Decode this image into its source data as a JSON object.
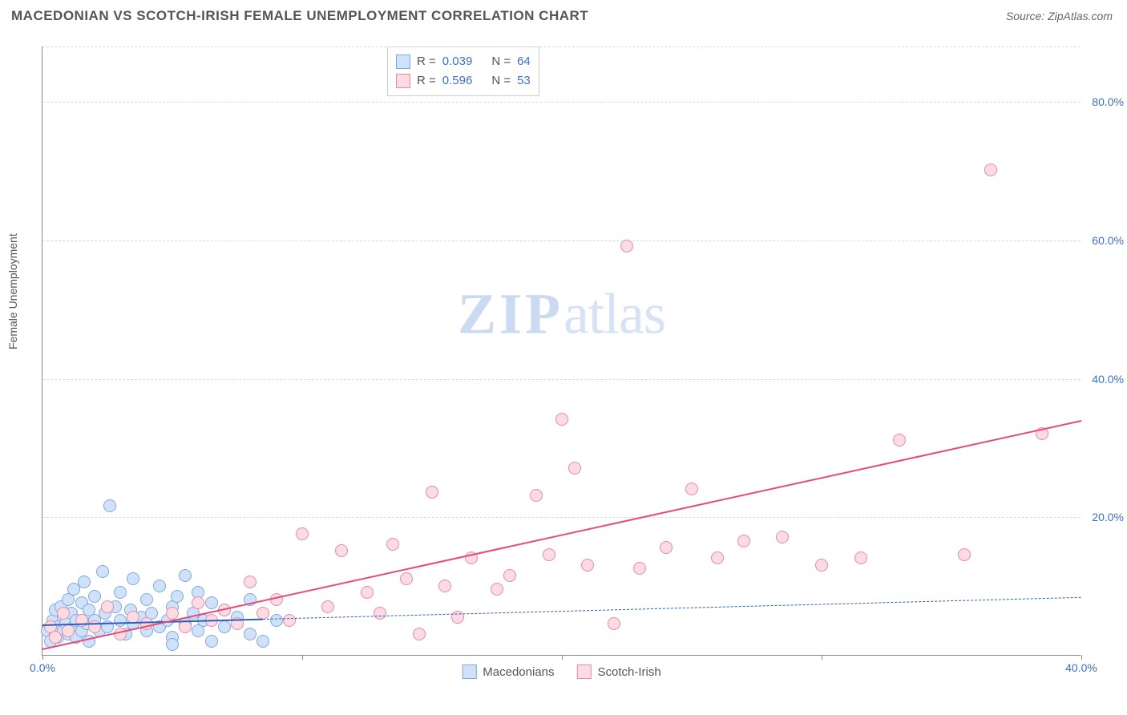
{
  "title": "MACEDONIAN VS SCOTCH-IRISH FEMALE UNEMPLOYMENT CORRELATION CHART",
  "source_label": "Source: ",
  "source_value": "ZipAtlas.com",
  "ylabel": "Female Unemployment",
  "watermark_main": "ZIP",
  "watermark_sub": "atlas",
  "chart": {
    "type": "scatter",
    "xlim": [
      0,
      40
    ],
    "ylim": [
      0,
      88
    ],
    "xtick_values": [
      0,
      10,
      20,
      30,
      40
    ],
    "xtick_labels": [
      "0.0%",
      "",
      "",
      "",
      "40.0%"
    ],
    "ytick_values": [
      20,
      40,
      60,
      80
    ],
    "ytick_labels": [
      "20.0%",
      "40.0%",
      "60.0%",
      "80.0%"
    ],
    "grid_y": [
      20,
      40,
      60,
      80,
      88
    ],
    "grid_color": "#d9d9d9",
    "background_color": "#ffffff",
    "axis_color": "#888888",
    "tick_label_color": "#3b6fd6",
    "series": [
      {
        "name": "Macedonians",
        "marker_color_fill": "#cfe2f9",
        "marker_color_stroke": "#7fa8e0",
        "marker_radius": 8,
        "trend_color": "#2b5fc0",
        "trend_style": "solid_then_dashed",
        "trend_x_solid_end": 8.5,
        "trend_y_start": 4.5,
        "trend_y_end": 8.5,
        "r_value": "0.039",
        "n_value": "64",
        "points": [
          [
            0.2,
            3.5
          ],
          [
            0.3,
            2.0
          ],
          [
            0.4,
            5.0
          ],
          [
            0.5,
            3.0
          ],
          [
            0.5,
            6.5
          ],
          [
            0.6,
            4.0
          ],
          [
            0.6,
            2.5
          ],
          [
            0.7,
            7.0
          ],
          [
            0.8,
            3.5
          ],
          [
            0.8,
            5.5
          ],
          [
            0.9,
            4.5
          ],
          [
            1.0,
            8.0
          ],
          [
            1.0,
            3.0
          ],
          [
            1.1,
            6.0
          ],
          [
            1.2,
            4.0
          ],
          [
            1.2,
            9.5
          ],
          [
            1.3,
            5.0
          ],
          [
            1.3,
            2.5
          ],
          [
            1.5,
            7.5
          ],
          [
            1.5,
            3.5
          ],
          [
            1.6,
            10.5
          ],
          [
            1.7,
            4.5
          ],
          [
            1.8,
            6.5
          ],
          [
            1.8,
            2.0
          ],
          [
            2.0,
            8.5
          ],
          [
            2.0,
            5.0
          ],
          [
            2.2,
            3.5
          ],
          [
            2.3,
            12.0
          ],
          [
            2.4,
            6.0
          ],
          [
            2.5,
            4.0
          ],
          [
            2.6,
            21.5
          ],
          [
            2.8,
            7.0
          ],
          [
            3.0,
            5.0
          ],
          [
            3.0,
            9.0
          ],
          [
            3.2,
            3.0
          ],
          [
            3.4,
            6.5
          ],
          [
            3.5,
            4.5
          ],
          [
            3.5,
            11.0
          ],
          [
            3.8,
            5.5
          ],
          [
            4.0,
            8.0
          ],
          [
            4.0,
            3.5
          ],
          [
            4.2,
            6.0
          ],
          [
            4.5,
            4.0
          ],
          [
            4.5,
            10.0
          ],
          [
            4.8,
            5.0
          ],
          [
            5.0,
            7.0
          ],
          [
            5.0,
            2.5
          ],
          [
            5.0,
            1.5
          ],
          [
            5.2,
            8.5
          ],
          [
            5.5,
            4.5
          ],
          [
            5.5,
            11.5
          ],
          [
            5.8,
            6.0
          ],
          [
            6.0,
            3.5
          ],
          [
            6.0,
            9.0
          ],
          [
            6.2,
            5.0
          ],
          [
            6.5,
            7.5
          ],
          [
            6.5,
            2.0
          ],
          [
            7.0,
            4.0
          ],
          [
            7.0,
            6.5
          ],
          [
            7.5,
            5.5
          ],
          [
            8.0,
            3.0
          ],
          [
            8.0,
            8.0
          ],
          [
            8.5,
            2.0
          ],
          [
            9.0,
            5.0
          ]
        ]
      },
      {
        "name": "Scotch-Irish",
        "marker_color_fill": "#fddbe3",
        "marker_color_stroke": "#e88ba5",
        "marker_radius": 8,
        "trend_color": "#e84a7a",
        "trend_style": "solid",
        "trend_y_start": 1.0,
        "trend_y_end": 34.0,
        "r_value": "0.596",
        "n_value": "53",
        "points": [
          [
            0.3,
            4.0
          ],
          [
            0.5,
            2.5
          ],
          [
            0.8,
            6.0
          ],
          [
            1.0,
            3.5
          ],
          [
            1.5,
            5.0
          ],
          [
            2.0,
            4.0
          ],
          [
            2.5,
            7.0
          ],
          [
            3.0,
            3.0
          ],
          [
            3.5,
            5.5
          ],
          [
            4.0,
            4.5
          ],
          [
            5.0,
            6.0
          ],
          [
            5.5,
            4.0
          ],
          [
            6.0,
            7.5
          ],
          [
            6.5,
            5.0
          ],
          [
            7.0,
            6.5
          ],
          [
            7.5,
            4.5
          ],
          [
            8.0,
            10.5
          ],
          [
            8.5,
            6.0
          ],
          [
            9.0,
            8.0
          ],
          [
            9.5,
            5.0
          ],
          [
            10.0,
            17.5
          ],
          [
            11.0,
            7.0
          ],
          [
            11.5,
            15.0
          ],
          [
            12.5,
            9.0
          ],
          [
            13.0,
            6.0
          ],
          [
            13.5,
            16.0
          ],
          [
            14.0,
            11.0
          ],
          [
            14.5,
            3.0
          ],
          [
            15.0,
            23.5
          ],
          [
            15.5,
            10.0
          ],
          [
            16.0,
            5.5
          ],
          [
            16.5,
            14.0
          ],
          [
            17.5,
            9.5
          ],
          [
            18.0,
            11.5
          ],
          [
            19.0,
            23.0
          ],
          [
            19.5,
            14.5
          ],
          [
            20.0,
            34.0
          ],
          [
            20.5,
            27.0
          ],
          [
            21.0,
            13.0
          ],
          [
            22.0,
            4.5
          ],
          [
            22.5,
            59.0
          ],
          [
            23.0,
            12.5
          ],
          [
            24.0,
            15.5
          ],
          [
            25.0,
            24.0
          ],
          [
            26.0,
            14.0
          ],
          [
            27.0,
            16.5
          ],
          [
            28.5,
            17.0
          ],
          [
            30.0,
            13.0
          ],
          [
            31.5,
            14.0
          ],
          [
            33.0,
            31.0
          ],
          [
            35.5,
            14.5
          ],
          [
            36.5,
            70.0
          ],
          [
            38.5,
            32.0
          ]
        ]
      }
    ],
    "stats_legend": {
      "r_label": "R =",
      "n_label": "N ="
    },
    "bottom_legend_labels": [
      "Macedonians",
      "Scotch-Irish"
    ]
  }
}
